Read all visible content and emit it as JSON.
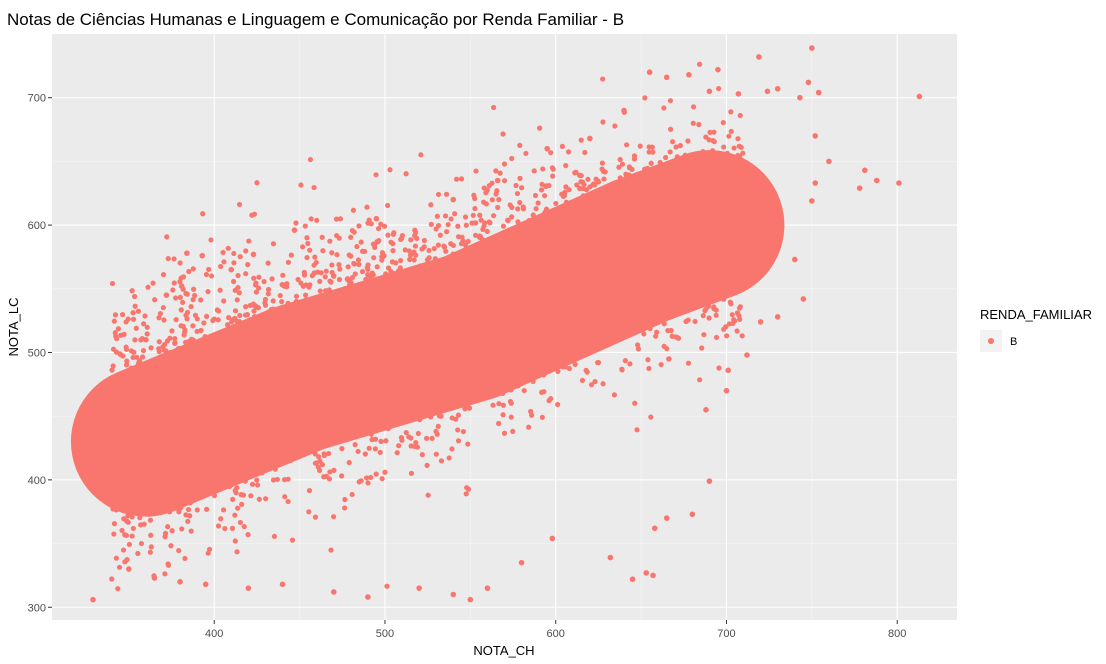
{
  "chart_data": {
    "type": "scatter",
    "title": "Notas de Ciências Humanas e Linguagem e Comunicação por Renda Familiar - B",
    "xlabel": "NOTA_CH",
    "ylabel": "NOTA_LC",
    "xlim": [
      305,
      835
    ],
    "ylim": [
      290,
      750
    ],
    "x_ticks": [
      400,
      500,
      600,
      700,
      800
    ],
    "y_ticks": [
      300,
      400,
      500,
      600,
      700
    ],
    "x_tick_labels": [
      "400",
      "500",
      "600",
      "700",
      "800"
    ],
    "y_tick_labels": [
      "300",
      "400",
      "500",
      "600",
      "700"
    ],
    "grid": true,
    "legend": {
      "title": "RENDA_FAMILIAR",
      "position": "right",
      "entries": [
        "B"
      ]
    },
    "colors": {
      "B": "#F8766D",
      "panel": "#EBEBEB",
      "grid": "#FFFFFF"
    },
    "series": [
      {
        "name": "B",
        "color": "#F8766D",
        "core_band": {
          "description_points": [
            [
              360,
              430
            ],
            [
              450,
              480
            ],
            [
              550,
              520
            ],
            [
              650,
              580
            ],
            [
              690,
              600
            ]
          ],
          "approx_point_count": 50000
        },
        "points": [
          [
            329,
            306
          ],
          [
            339,
            440
          ],
          [
            345,
            470
          ],
          [
            350,
            430
          ],
          [
            355,
            480
          ],
          [
            360,
            510
          ],
          [
            366,
            400
          ],
          [
            372,
            545
          ],
          [
            381,
            552
          ],
          [
            384,
            578
          ],
          [
            393,
            576
          ],
          [
            410,
            565
          ],
          [
            423,
            577
          ],
          [
            447,
            596
          ],
          [
            470,
            560
          ],
          [
            495,
            605
          ],
          [
            540,
            620
          ],
          [
            566,
            635
          ],
          [
            595,
            660
          ],
          [
            620,
            668
          ],
          [
            640,
            690
          ],
          [
            655,
            720
          ],
          [
            665,
            716
          ],
          [
            678,
            718
          ],
          [
            690,
            705
          ],
          [
            695,
            722
          ],
          [
            707,
            703
          ],
          [
            719,
            732
          ],
          [
            724,
            705
          ],
          [
            730,
            707
          ],
          [
            743,
            700
          ],
          [
            748,
            712
          ],
          [
            750,
            739
          ],
          [
            754,
            704
          ],
          [
            752,
            670
          ],
          [
            760,
            650
          ],
          [
            752,
            633
          ],
          [
            750,
            619
          ],
          [
            778,
            629
          ],
          [
            781,
            643
          ],
          [
            788,
            635
          ],
          [
            801,
            633
          ],
          [
            813,
            701
          ],
          [
            740,
            573
          ],
          [
            745,
            542
          ],
          [
            730,
            528
          ],
          [
            720,
            524
          ],
          [
            712,
            498
          ],
          [
            701,
            486
          ],
          [
            700,
            470
          ],
          [
            688,
            455
          ],
          [
            690,
            399
          ],
          [
            680,
            373
          ],
          [
            665,
            370
          ],
          [
            658,
            362
          ],
          [
            653,
            327
          ],
          [
            657,
            325
          ],
          [
            645,
            322
          ],
          [
            632,
            339
          ],
          [
            598,
            354
          ],
          [
            580,
            335
          ],
          [
            560,
            315
          ],
          [
            550,
            306
          ],
          [
            540,
            310
          ],
          [
            520,
            315
          ],
          [
            490,
            308
          ],
          [
            470,
            312
          ],
          [
            440,
            318
          ],
          [
            420,
            315
          ],
          [
            395,
            318
          ],
          [
            380,
            320
          ],
          [
            365,
            323
          ],
          [
            350,
            330
          ]
        ]
      }
    ]
  }
}
